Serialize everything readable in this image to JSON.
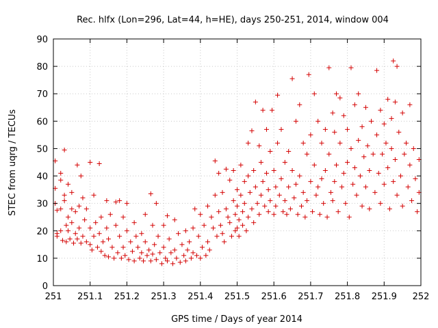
{
  "chart_data": {
    "type": "scatter",
    "title": "Rec. hlfx (Lon=296, Lat=44, h=HE), days 250-251, 2014, window 004",
    "xlabel": "GPS time / Days of year 2014",
    "ylabel": "STEC from uqrg / TECUs",
    "xlim": [
      251,
      252
    ],
    "ylim": [
      0,
      90
    ],
    "xticks": [
      251,
      251.1,
      251.2,
      251.3,
      251.4,
      251.5,
      251.6,
      251.7,
      251.8,
      251.9,
      252
    ],
    "xtick_labels": [
      "251",
      "251.1",
      "251.2",
      "251.3",
      "251.4",
      "251.5",
      "251.6",
      "251.7",
      "251.8",
      "251.9",
      "252"
    ],
    "yticks": [
      0,
      10,
      20,
      30,
      40,
      50,
      60,
      70,
      80,
      90
    ],
    "ytick_labels": [
      "0",
      "10",
      "20",
      "30",
      "40",
      "50",
      "60",
      "70",
      "80",
      "90"
    ],
    "grid": true,
    "marker": "plus",
    "color": "#d40000",
    "points": [
      [
        251.005,
        45.5
      ],
      [
        251.005,
        35.5
      ],
      [
        251.005,
        30
      ],
      [
        251.01,
        27.5
      ],
      [
        251.01,
        19
      ],
      [
        251.01,
        18
      ],
      [
        251.02,
        41
      ],
      [
        251.02,
        38.5
      ],
      [
        251.02,
        28
      ],
      [
        251.02,
        20
      ],
      [
        251.025,
        16.5
      ],
      [
        251.03,
        49.5
      ],
      [
        251.03,
        33
      ],
      [
        251.03,
        31
      ],
      [
        251.035,
        22
      ],
      [
        251.035,
        16
      ],
      [
        251.04,
        37
      ],
      [
        251.04,
        25
      ],
      [
        251.04,
        20
      ],
      [
        251.045,
        17
      ],
      [
        251.05,
        34
      ],
      [
        251.05,
        28
      ],
      [
        251.05,
        23
      ],
      [
        251.055,
        15.5
      ],
      [
        251.06,
        27
      ],
      [
        251.06,
        19
      ],
      [
        251.065,
        44
      ],
      [
        251.065,
        17
      ],
      [
        251.07,
        29
      ],
      [
        251.07,
        21
      ],
      [
        251.075,
        40
      ],
      [
        251.075,
        15.5
      ],
      [
        251.08,
        32
      ],
      [
        251.08,
        18
      ],
      [
        251.085,
        24
      ],
      [
        251.09,
        28
      ],
      [
        251.09,
        16
      ],
      [
        251.1,
        45
      ],
      [
        251.1,
        21
      ],
      [
        251.1,
        15
      ],
      [
        251.105,
        13
      ],
      [
        251.11,
        33
      ],
      [
        251.11,
        18
      ],
      [
        251.115,
        23
      ],
      [
        251.12,
        14
      ],
      [
        251.125,
        44.5
      ],
      [
        251.125,
        19
      ],
      [
        251.13,
        25
      ],
      [
        251.13,
        12.5
      ],
      [
        251.135,
        16
      ],
      [
        251.14,
        11
      ],
      [
        251.145,
        31
      ],
      [
        251.145,
        21
      ],
      [
        251.15,
        17
      ],
      [
        251.15,
        10.5
      ],
      [
        251.155,
        26
      ],
      [
        251.16,
        14
      ],
      [
        251.165,
        10
      ],
      [
        251.17,
        30.5
      ],
      [
        251.17,
        22
      ],
      [
        251.175,
        12
      ],
      [
        251.18,
        31
      ],
      [
        251.18,
        18
      ],
      [
        251.185,
        10
      ],
      [
        251.19,
        25
      ],
      [
        251.19,
        14
      ],
      [
        251.195,
        11
      ],
      [
        251.2,
        30
      ],
      [
        251.2,
        20
      ],
      [
        251.205,
        9.5
      ],
      [
        251.21,
        16
      ],
      [
        251.215,
        12.5
      ],
      [
        251.22,
        23
      ],
      [
        251.22,
        9
      ],
      [
        251.225,
        18
      ],
      [
        251.23,
        14
      ],
      [
        251.235,
        10
      ],
      [
        251.24,
        19
      ],
      [
        251.24,
        12
      ],
      [
        251.245,
        9
      ],
      [
        251.25,
        26
      ],
      [
        251.25,
        16
      ],
      [
        251.255,
        11
      ],
      [
        251.26,
        13
      ],
      [
        251.265,
        33.5
      ],
      [
        251.265,
        9
      ],
      [
        251.27,
        22
      ],
      [
        251.27,
        11.5
      ],
      [
        251.275,
        15
      ],
      [
        251.28,
        30
      ],
      [
        251.28,
        9.5
      ],
      [
        251.285,
        18
      ],
      [
        251.29,
        12
      ],
      [
        251.295,
        8
      ],
      [
        251.3,
        22
      ],
      [
        251.3,
        14
      ],
      [
        251.305,
        10
      ],
      [
        251.31,
        25.5
      ],
      [
        251.31,
        9
      ],
      [
        251.315,
        17
      ],
      [
        251.32,
        12
      ],
      [
        251.325,
        8
      ],
      [
        251.33,
        24
      ],
      [
        251.33,
        13
      ],
      [
        251.335,
        10
      ],
      [
        251.34,
        19
      ],
      [
        251.345,
        8.5
      ],
      [
        251.35,
        15
      ],
      [
        251.355,
        11
      ],
      [
        251.36,
        20
      ],
      [
        251.36,
        9
      ],
      [
        251.365,
        13
      ],
      [
        251.37,
        16
      ],
      [
        251.375,
        10
      ],
      [
        251.38,
        21
      ],
      [
        251.38,
        12
      ],
      [
        251.385,
        28
      ],
      [
        251.39,
        11
      ],
      [
        251.395,
        18
      ],
      [
        251.4,
        26
      ],
      [
        251.4,
        10
      ],
      [
        251.405,
        14
      ],
      [
        251.41,
        22
      ],
      [
        251.415,
        11
      ],
      [
        251.42,
        29
      ],
      [
        251.42,
        16
      ],
      [
        251.425,
        13
      ],
      [
        251.43,
        25
      ],
      [
        251.435,
        21
      ],
      [
        251.44,
        45.5
      ],
      [
        251.44,
        33
      ],
      [
        251.445,
        18
      ],
      [
        251.45,
        41
      ],
      [
        251.45,
        27
      ],
      [
        251.455,
        22
      ],
      [
        251.46,
        34
      ],
      [
        251.46,
        19
      ],
      [
        251.465,
        16
      ],
      [
        251.47,
        42.5
      ],
      [
        251.47,
        28
      ],
      [
        251.475,
        25
      ],
      [
        251.48,
        38.5
      ],
      [
        251.48,
        23
      ],
      [
        251.485,
        18
      ],
      [
        251.49,
        42
      ],
      [
        251.49,
        31
      ],
      [
        251.495,
        26
      ],
      [
        251.495,
        20
      ],
      [
        251.5,
        35
      ],
      [
        251.5,
        29
      ],
      [
        251.5,
        21
      ],
      [
        251.505,
        24
      ],
      [
        251.505,
        18
      ],
      [
        251.51,
        44
      ],
      [
        251.51,
        33
      ],
      [
        251.515,
        27
      ],
      [
        251.515,
        22
      ],
      [
        251.52,
        38
      ],
      [
        251.52,
        30
      ],
      [
        251.525,
        20
      ],
      [
        251.53,
        52
      ],
      [
        251.53,
        40
      ],
      [
        251.53,
        25
      ],
      [
        251.535,
        34
      ],
      [
        251.54,
        56.5
      ],
      [
        251.54,
        28
      ],
      [
        251.545,
        42
      ],
      [
        251.545,
        23
      ],
      [
        251.55,
        67
      ],
      [
        251.55,
        36
      ],
      [
        251.555,
        30
      ],
      [
        251.56,
        51
      ],
      [
        251.56,
        26
      ],
      [
        251.565,
        45
      ],
      [
        251.565,
        33
      ],
      [
        251.57,
        64
      ],
      [
        251.57,
        38
      ],
      [
        251.575,
        29
      ],
      [
        251.58,
        57
      ],
      [
        251.58,
        41
      ],
      [
        251.585,
        35
      ],
      [
        251.585,
        27
      ],
      [
        251.59,
        49
      ],
      [
        251.59,
        31
      ],
      [
        251.595,
        64
      ],
      [
        251.6,
        42
      ],
      [
        251.6,
        26
      ],
      [
        251.605,
        36
      ],
      [
        251.605,
        29
      ],
      [
        251.61,
        69.5
      ],
      [
        251.61,
        52
      ],
      [
        251.615,
        33
      ],
      [
        251.62,
        57
      ],
      [
        251.62,
        39
      ],
      [
        251.625,
        27
      ],
      [
        251.63,
        45
      ],
      [
        251.63,
        31
      ],
      [
        251.635,
        26
      ],
      [
        251.64,
        49
      ],
      [
        251.64,
        36
      ],
      [
        251.645,
        28
      ],
      [
        251.65,
        75.5
      ],
      [
        251.65,
        42
      ],
      [
        251.655,
        32
      ],
      [
        251.66,
        60
      ],
      [
        251.66,
        37
      ],
      [
        251.665,
        26
      ],
      [
        251.67,
        66
      ],
      [
        251.67,
        40
      ],
      [
        251.675,
        29
      ],
      [
        251.68,
        52
      ],
      [
        251.68,
        34
      ],
      [
        251.685,
        25
      ],
      [
        251.69,
        48
      ],
      [
        251.69,
        31
      ],
      [
        251.695,
        77
      ],
      [
        251.7,
        55
      ],
      [
        251.7,
        38
      ],
      [
        251.705,
        27
      ],
      [
        251.71,
        70
      ],
      [
        251.71,
        44
      ],
      [
        251.715,
        33
      ],
      [
        251.72,
        60
      ],
      [
        251.72,
        36
      ],
      [
        251.725,
        26
      ],
      [
        251.73,
        52
      ],
      [
        251.73,
        39
      ],
      [
        251.735,
        30
      ],
      [
        251.74,
        57
      ],
      [
        251.74,
        42
      ],
      [
        251.745,
        25
      ],
      [
        251.75,
        79.5
      ],
      [
        251.75,
        48
      ],
      [
        251.755,
        34
      ],
      [
        251.76,
        63
      ],
      [
        251.76,
        31
      ],
      [
        251.765,
        56
      ],
      [
        251.765,
        38
      ],
      [
        251.77,
        70
      ],
      [
        251.77,
        44
      ],
      [
        251.775,
        27
      ],
      [
        251.78,
        68.5
      ],
      [
        251.78,
        52
      ],
      [
        251.785,
        36
      ],
      [
        251.79,
        62
      ],
      [
        251.79,
        41
      ],
      [
        251.795,
        30
      ],
      [
        251.8,
        57
      ],
      [
        251.8,
        45
      ],
      [
        251.805,
        25
      ],
      [
        251.81,
        79.5
      ],
      [
        251.81,
        50
      ],
      [
        251.815,
        37
      ],
      [
        251.82,
        66
      ],
      [
        251.82,
        43
      ],
      [
        251.825,
        33
      ],
      [
        251.83,
        70
      ],
      [
        251.83,
        53
      ],
      [
        251.835,
        40
      ],
      [
        251.84,
        58
      ],
      [
        251.84,
        29
      ],
      [
        251.845,
        47
      ],
      [
        251.85,
        65
      ],
      [
        251.85,
        36
      ],
      [
        251.855,
        51
      ],
      [
        251.86,
        42
      ],
      [
        251.86,
        28
      ],
      [
        251.865,
        60
      ],
      [
        251.87,
        48
      ],
      [
        251.875,
        34
      ],
      [
        251.88,
        78.5
      ],
      [
        251.88,
        55
      ],
      [
        251.885,
        41
      ],
      [
        251.89,
        64
      ],
      [
        251.89,
        30
      ],
      [
        251.895,
        48
      ],
      [
        251.9,
        59
      ],
      [
        251.9,
        37
      ],
      [
        251.905,
        52
      ],
      [
        251.91,
        68
      ],
      [
        251.91,
        43
      ],
      [
        251.915,
        28
      ],
      [
        251.92,
        61
      ],
      [
        251.92,
        50
      ],
      [
        251.925,
        82
      ],
      [
        251.925,
        38
      ],
      [
        251.93,
        67
      ],
      [
        251.93,
        46
      ],
      [
        251.935,
        80
      ],
      [
        251.935,
        33
      ],
      [
        251.94,
        56
      ],
      [
        251.945,
        40
      ],
      [
        251.95,
        63
      ],
      [
        251.95,
        29
      ],
      [
        251.955,
        48
      ],
      [
        251.96,
        52
      ],
      [
        251.965,
        36
      ],
      [
        251.97,
        66
      ],
      [
        251.97,
        44
      ],
      [
        251.975,
        31
      ],
      [
        251.98,
        50
      ],
      [
        251.985,
        39
      ],
      [
        251.99,
        27
      ],
      [
        251.995,
        46
      ],
      [
        251.995,
        34
      ]
    ]
  }
}
